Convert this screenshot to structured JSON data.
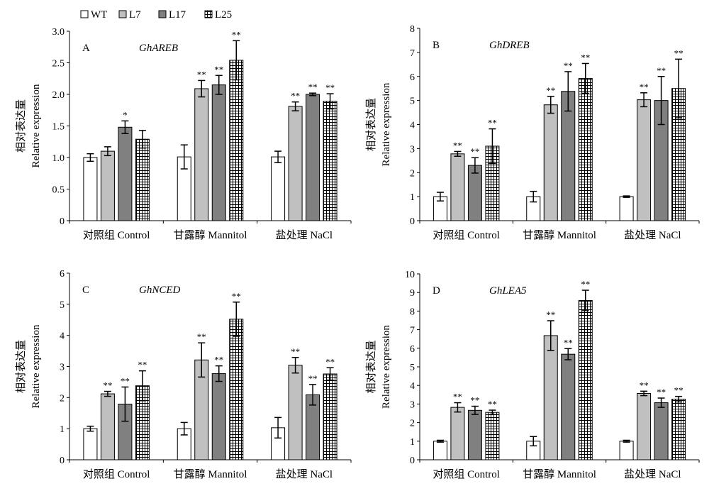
{
  "legend": {
    "items": [
      {
        "label": "WT",
        "pattern": "white"
      },
      {
        "label": "L7",
        "pattern": "light"
      },
      {
        "label": "L17",
        "pattern": "dark"
      },
      {
        "label": "L25",
        "pattern": "grid"
      }
    ]
  },
  "colors": {
    "white": "#ffffff",
    "light": "#c0c0c0",
    "dark": "#808080",
    "grid_line": "#000000",
    "axis": "#000000"
  },
  "chart_data": [
    {
      "type": "bar",
      "panel": "A",
      "gene": "GhAREB",
      "ylabel_cn": "相对表达量",
      "ylabel_en": "Relative expression",
      "categories": [
        "对照组 Control",
        "甘露醇 Mannitol",
        "盐处理 NaCl"
      ],
      "ylim": [
        0,
        3.0
      ],
      "yticks": [
        "0",
        "0.5",
        "1.0",
        "1.5",
        "2.0",
        "2.5",
        "3.0"
      ],
      "series": [
        {
          "name": "WT",
          "values": [
            1.0,
            1.01,
            1.01
          ],
          "errors": [
            0.06,
            0.19,
            0.09
          ],
          "sig": [
            "",
            "",
            ""
          ]
        },
        {
          "name": "L7",
          "values": [
            1.1,
            2.09,
            1.81
          ],
          "errors": [
            0.07,
            0.13,
            0.07
          ],
          "sig": [
            "",
            "**",
            "**"
          ]
        },
        {
          "name": "L17",
          "values": [
            1.48,
            2.15,
            2.0
          ],
          "errors": [
            0.1,
            0.15,
            0.02
          ],
          "sig": [
            "*",
            "**",
            "**"
          ]
        },
        {
          "name": "L25",
          "values": [
            1.29,
            2.54,
            1.89
          ],
          "errors": [
            0.14,
            0.31,
            0.12
          ],
          "sig": [
            "",
            "**",
            "**"
          ]
        }
      ]
    },
    {
      "type": "bar",
      "panel": "B",
      "gene": "GhDREB",
      "ylabel_cn": "相对表达量",
      "ylabel_en": "Relative expression",
      "categories": [
        "对照组 Control",
        "甘露醇 Mannitol",
        "盐处理 NaCl"
      ],
      "ylim": [
        0,
        8
      ],
      "yticks": [
        "0",
        "1",
        "2",
        "3",
        "4",
        "5",
        "6",
        "7",
        "8"
      ],
      "series": [
        {
          "name": "WT",
          "values": [
            1.0,
            1.0,
            1.0
          ],
          "errors": [
            0.18,
            0.22,
            0.03
          ],
          "sig": [
            "",
            "",
            ""
          ]
        },
        {
          "name": "L7",
          "values": [
            2.78,
            4.82,
            5.03
          ],
          "errors": [
            0.1,
            0.35,
            0.29
          ],
          "sig": [
            "**",
            "**",
            "**"
          ]
        },
        {
          "name": "L17",
          "values": [
            2.3,
            5.38,
            5.0
          ],
          "errors": [
            0.32,
            0.82,
            1.0
          ],
          "sig": [
            "**",
            "**",
            "**"
          ]
        },
        {
          "name": "L25",
          "values": [
            3.1,
            5.92,
            5.5
          ],
          "errors": [
            0.72,
            0.62,
            1.22
          ],
          "sig": [
            "**",
            "**",
            "**"
          ]
        }
      ]
    },
    {
      "type": "bar",
      "panel": "C",
      "gene": "GhNCED",
      "ylabel_cn": "相对表达量",
      "ylabel_en": "Relative expression",
      "categories": [
        "对照组 Control",
        "甘露醇 Mannitol",
        "盐处理 NaCl"
      ],
      "ylim": [
        0,
        6
      ],
      "yticks": [
        "0",
        "1",
        "2",
        "3",
        "4",
        "5",
        "6"
      ],
      "series": [
        {
          "name": "WT",
          "values": [
            1.0,
            1.0,
            1.03
          ],
          "errors": [
            0.08,
            0.2,
            0.33
          ],
          "sig": [
            "",
            "",
            ""
          ]
        },
        {
          "name": "L7",
          "values": [
            2.12,
            3.21,
            3.04
          ],
          "errors": [
            0.08,
            0.55,
            0.25
          ],
          "sig": [
            "**",
            "**",
            "**"
          ]
        },
        {
          "name": "L17",
          "values": [
            1.79,
            2.77,
            2.09
          ],
          "errors": [
            0.55,
            0.25,
            0.33
          ],
          "sig": [
            "**",
            "**",
            "**"
          ]
        },
        {
          "name": "L25",
          "values": [
            2.38,
            4.52,
            2.76
          ],
          "errors": [
            0.48,
            0.55,
            0.2
          ],
          "sig": [
            "**",
            "**",
            "**"
          ]
        }
      ]
    },
    {
      "type": "bar",
      "panel": "D",
      "gene": "GhLEA5",
      "ylabel_cn": "相对表达量",
      "ylabel_en": "Relative expression",
      "categories": [
        "对照组 Control",
        "甘露醇 Mannitol",
        "盐处理 NaCl"
      ],
      "ylim": [
        0,
        10
      ],
      "yticks": [
        "0",
        "1",
        "2",
        "3",
        "4",
        "5",
        "6",
        "7",
        "8",
        "9",
        "10"
      ],
      "series": [
        {
          "name": "WT",
          "values": [
            1.0,
            1.0,
            1.0
          ],
          "errors": [
            0.05,
            0.25,
            0.05
          ],
          "sig": [
            "",
            "",
            ""
          ]
        },
        {
          "name": "L7",
          "values": [
            2.82,
            6.68,
            3.57
          ],
          "errors": [
            0.25,
            0.8,
            0.12
          ],
          "sig": [
            "**",
            "**",
            "**"
          ]
        },
        {
          "name": "L17",
          "values": [
            2.66,
            5.68,
            3.07
          ],
          "errors": [
            0.22,
            0.3,
            0.25
          ],
          "sig": [
            "**",
            "**",
            "**"
          ]
        },
        {
          "name": "L25",
          "values": [
            2.55,
            8.57,
            3.26
          ],
          "errors": [
            0.12,
            0.55,
            0.15
          ],
          "sig": [
            "**",
            "**",
            "**"
          ]
        }
      ]
    }
  ]
}
